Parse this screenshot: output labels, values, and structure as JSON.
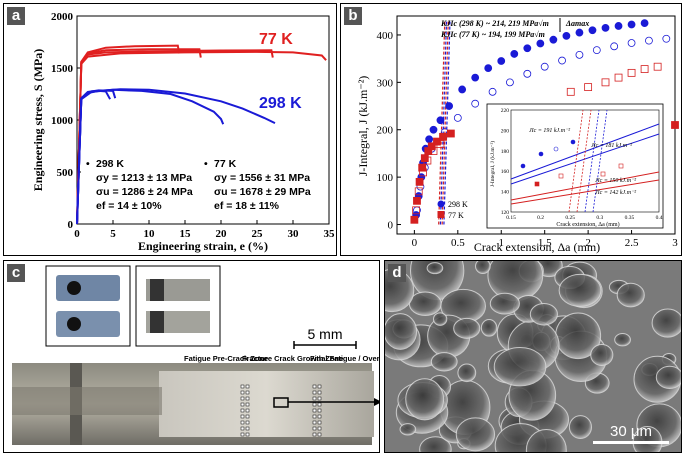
{
  "panel_a": {
    "label": "a",
    "chart_data": {
      "type": "line",
      "xlabel": "Engineering strain, e (%)",
      "ylabel": "Engineering stress, S (MPa)",
      "xlim": [
        0,
        35
      ],
      "ylim": [
        0,
        2000
      ],
      "xticks": [
        "0",
        "5",
        "10",
        "15",
        "20",
        "25",
        "30",
        "35"
      ],
      "yticks": [
        "0",
        "500",
        "1000",
        "1500",
        "2000"
      ],
      "series": [
        {
          "name": "77 K",
          "color": "#e02020",
          "curves": [
            [
              [
                0,
                0
              ],
              [
                0.6,
                1560
              ],
              [
                1.5,
                1650
              ],
              [
                4,
                1695
              ],
              [
                8,
                1710
              ],
              [
                14,
                1715
              ],
              [
                14.2,
                1640
              ]
            ],
            [
              [
                0,
                0
              ],
              [
                0.6,
                1560
              ],
              [
                1.5,
                1640
              ],
              [
                4,
                1670
              ],
              [
                10,
                1680
              ],
              [
                17,
                1680
              ],
              [
                17.2,
                1600
              ]
            ],
            [
              [
                0,
                0
              ],
              [
                0.6,
                1550
              ],
              [
                1.5,
                1630
              ],
              [
                4,
                1650
              ],
              [
                10,
                1660
              ],
              [
                20,
                1668
              ],
              [
                27,
                1670
              ],
              [
                27.2,
                1600
              ]
            ],
            [
              [
                0,
                0
              ],
              [
                0.6,
                1540
              ],
              [
                1.5,
                1610
              ],
              [
                6,
                1640
              ],
              [
                15,
                1650
              ],
              [
                25,
                1655
              ],
              [
                30,
                1650
              ],
              [
                34,
                1620
              ],
              [
                34.6,
                1575
              ]
            ]
          ]
        },
        {
          "name": "298 K",
          "color": "#1a1ad6",
          "curves": [
            [
              [
                0,
                0
              ],
              [
                0.6,
                1200
              ],
              [
                1.5,
                1260
              ],
              [
                3,
                1280
              ],
              [
                4,
                1275
              ],
              [
                4.6,
                1200
              ]
            ],
            [
              [
                0,
                0
              ],
              [
                0.6,
                1210
              ],
              [
                1.5,
                1270
              ],
              [
                3,
                1285
              ],
              [
                5,
                1280
              ],
              [
                5.3,
                1210
              ]
            ],
            [
              [
                0,
                0
              ],
              [
                0.6,
                1200
              ],
              [
                2,
                1270
              ],
              [
                5,
                1290
              ],
              [
                9,
                1280
              ],
              [
                13,
                1250
              ],
              [
                16,
                1180
              ],
              [
                19,
                1080
              ],
              [
                20,
                1010
              ],
              [
                20.3,
                960
              ]
            ],
            [
              [
                0,
                0
              ],
              [
                0.6,
                1205
              ],
              [
                2,
                1275
              ],
              [
                6,
                1295
              ],
              [
                10,
                1290
              ],
              [
                15,
                1255
              ],
              [
                20,
                1180
              ],
              [
                23,
                1110
              ],
              [
                26,
                1020
              ],
              [
                27.5,
                970
              ]
            ]
          ]
        }
      ],
      "annotations": {
        "col1_title": "298 K",
        "col1_sy": "σy = 1213 ± 13 MPa",
        "col1_su": "σu = 1286 ± 24 MPa",
        "col1_ef": "ef = 14 ± 10%",
        "col2_title": "77 K",
        "col2_sy": "σy = 1556 ± 31 MPa",
        "col2_su": "σu = 1678 ± 29 MPa",
        "col2_ef": "ef = 18 ± 11%"
      }
    }
  },
  "panel_b": {
    "label": "b",
    "chart_data": {
      "type": "scatter",
      "xlabel": "Crack extension, Δa (mm)",
      "ylabel": "J-Integral, J (kJ.m⁻²)",
      "xlim": [
        -0.2,
        3
      ],
      "ylim": [
        -20,
        440
      ],
      "xticks": [
        "0",
        "0.5",
        "1",
        "1.5",
        "2",
        "2.5",
        "3"
      ],
      "yticks": [
        "0",
        "100",
        "200",
        "300",
        "400"
      ],
      "annotation_298": "KJIc (298 K) ~ 214, 219 MPa√m",
      "annotation_77": "KJIc (77 K) ~ 194, 199 MPa√m",
      "delta_label": "Δamax",
      "legend": [
        "298 K",
        "77 K"
      ],
      "series": [
        {
          "name": "298 K filled",
          "color": "#1a1ad6",
          "marker": "circle-filled",
          "points": [
            [
              0.02,
              20
            ],
            [
              0.05,
              60
            ],
            [
              0.08,
              100
            ],
            [
              0.1,
              130
            ],
            [
              0.13,
              160
            ],
            [
              0.17,
              180
            ],
            [
              0.22,
              200
            ],
            [
              0.3,
              220
            ],
            [
              0.4,
              250
            ],
            [
              0.55,
              285
            ],
            [
              0.7,
              310
            ],
            [
              0.85,
              330
            ],
            [
              1.0,
              345
            ],
            [
              1.15,
              360
            ],
            [
              1.3,
              372
            ],
            [
              1.45,
              382
            ],
            [
              1.6,
              390
            ],
            [
              1.75,
              398
            ],
            [
              1.9,
              405
            ],
            [
              2.05,
              410
            ],
            [
              2.2,
              415
            ],
            [
              2.35,
              419
            ],
            [
              2.5,
              422
            ],
            [
              2.65,
              425
            ]
          ]
        },
        {
          "name": "298 K open",
          "color": "#1a1ad6",
          "marker": "circle-open",
          "points": [
            [
              0.03,
              30
            ],
            [
              0.07,
              80
            ],
            [
              0.12,
              120
            ],
            [
              0.2,
              160
            ],
            [
              0.35,
              195
            ],
            [
              0.5,
              225
            ],
            [
              0.7,
              255
            ],
            [
              0.9,
              280
            ],
            [
              1.1,
              300
            ],
            [
              1.3,
              318
            ],
            [
              1.5,
              333
            ],
            [
              1.7,
              346
            ],
            [
              1.9,
              358
            ],
            [
              2.1,
              368
            ],
            [
              2.3,
              376
            ],
            [
              2.5,
              383
            ],
            [
              2.7,
              388
            ],
            [
              2.9,
              392
            ]
          ]
        },
        {
          "name": "77 K filled",
          "color": "#d42020",
          "marker": "square-filled",
          "points": [
            [
              0.0,
              10
            ],
            [
              0.03,
              50
            ],
            [
              0.06,
              90
            ],
            [
              0.09,
              120
            ],
            [
              0.12,
              140
            ],
            [
              0.16,
              155
            ],
            [
              0.2,
              165
            ],
            [
              0.26,
              175
            ],
            [
              0.33,
              185
            ],
            [
              0.42,
              192
            ],
            [
              3.0,
              210
            ]
          ]
        },
        {
          "name": "77 K open",
          "color": "#d42020",
          "marker": "square-open",
          "points": [
            [
              0.02,
              30
            ],
            [
              0.05,
              70
            ],
            [
              0.1,
              110
            ],
            [
              0.15,
              135
            ],
            [
              0.22,
              155
            ],
            [
              0.3,
              170
            ],
            [
              1.8,
              280
            ],
            [
              2.0,
              290
            ],
            [
              2.2,
              300
            ],
            [
              2.35,
              310
            ],
            [
              2.5,
              320
            ],
            [
              2.65,
              328
            ],
            [
              2.8,
              333
            ]
          ]
        }
      ],
      "inset": {
        "xlabel": "Crack extension, Δa (mm)",
        "ylabel": "J-Integral, J (kJ.m⁻²)",
        "xticks": [
          "0.15",
          "0.2",
          "0.25",
          "0.3",
          "0.35",
          "0.4"
        ],
        "yticks": [
          "120",
          "140",
          "160",
          "180",
          "200",
          "220"
        ],
        "labels": [
          "JIc = 191 kJ.m⁻²",
          "JIc = 181 kJ.m⁻²",
          "JIc = 150 kJ.m⁻²",
          "JIc = 142 kJ.m⁻²"
        ]
      }
    }
  },
  "panel_c": {
    "label": "c",
    "scale_bar": "5 mm",
    "zones": [
      "Fatigue Pre-Crack Zone",
      "Fracture Crack Growth Zone",
      "Final Fatigue / Overload Zone"
    ]
  },
  "panel_d": {
    "label": "d",
    "scale_bar": "30 μm"
  }
}
